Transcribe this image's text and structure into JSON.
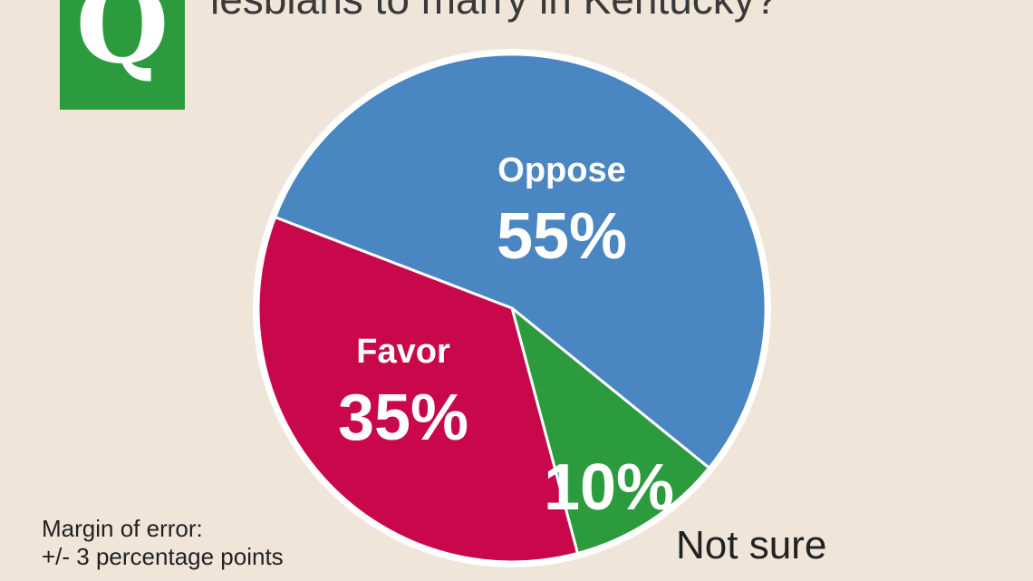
{
  "header": {
    "badge_letter": "Q",
    "question_text": "lesbians to marry in Kentucky?"
  },
  "footnote": {
    "line1": "Margin of error:",
    "line2": "+/- 3 percentage points"
  },
  "chart_data": {
    "type": "pie",
    "title": "",
    "slices": [
      {
        "label": "Oppose",
        "value": 55,
        "value_label": "55%",
        "color": "#4a86c1"
      },
      {
        "label": "Not sure",
        "value": 10,
        "value_label": "10%",
        "color": "#2b9b3e"
      },
      {
        "label": "Favor",
        "value": 35,
        "value_label": "35%",
        "color": "#c8084a"
      }
    ],
    "legend": "none"
  }
}
